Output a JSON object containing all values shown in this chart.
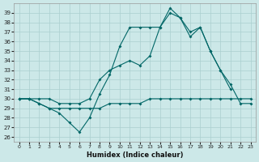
{
  "xlabel": "Humidex (Indice chaleur)",
  "bg_color": "#cce8e8",
  "grid_color": "#aacfcf",
  "line_color": "#006666",
  "xlim": [
    -0.5,
    23.5
  ],
  "ylim": [
    25.5,
    40.0
  ],
  "yticks": [
    26,
    27,
    28,
    29,
    30,
    31,
    32,
    33,
    34,
    35,
    36,
    37,
    38,
    39
  ],
  "xticks": [
    0,
    1,
    2,
    3,
    4,
    5,
    6,
    7,
    8,
    9,
    10,
    11,
    12,
    13,
    14,
    15,
    16,
    17,
    18,
    19,
    20,
    21,
    22,
    23
  ],
  "line1_x": [
    0,
    1,
    2,
    3,
    4,
    5,
    6,
    7,
    8,
    9,
    10,
    11,
    12,
    13,
    14,
    15,
    16,
    17,
    18,
    19,
    20,
    21
  ],
  "line1_y": [
    30.0,
    30.0,
    29.5,
    29.0,
    28.5,
    27.5,
    26.5,
    28.0,
    30.5,
    32.5,
    35.5,
    37.5,
    37.5,
    37.5,
    37.5,
    39.0,
    38.5,
    37.0,
    37.5,
    35.0,
    33.0,
    31.0
  ],
  "line2_x": [
    0,
    1,
    2,
    3,
    4,
    5,
    6,
    7,
    8,
    9,
    10,
    11,
    12,
    13,
    14,
    15,
    16,
    17,
    18,
    19,
    20,
    21,
    22,
    23
  ],
  "line2_y": [
    30.0,
    30.0,
    30.0,
    30.0,
    29.5,
    29.5,
    29.5,
    30.0,
    32.0,
    33.0,
    33.5,
    34.0,
    33.5,
    34.5,
    37.5,
    39.5,
    38.5,
    36.5,
    37.5,
    35.0,
    33.0,
    31.5,
    29.5,
    29.5
  ],
  "line3_x": [
    0,
    1,
    2,
    3,
    4,
    5,
    6,
    7,
    8,
    9,
    10,
    11,
    12,
    13,
    14,
    15,
    16,
    17,
    18,
    19,
    20,
    21,
    22,
    23
  ],
  "line3_y": [
    30.0,
    30.0,
    29.5,
    29.0,
    29.0,
    29.0,
    29.0,
    29.0,
    29.0,
    29.5,
    29.5,
    29.5,
    29.5,
    30.0,
    30.0,
    30.0,
    30.0,
    30.0,
    30.0,
    30.0,
    30.0,
    30.0,
    30.0,
    30.0
  ]
}
